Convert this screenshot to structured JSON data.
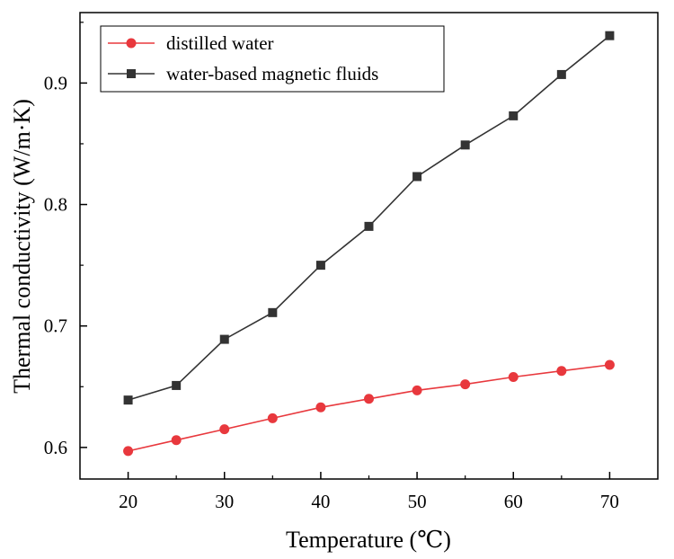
{
  "chart_data": {
    "type": "line",
    "title": "",
    "xlabel": "Temperature (℃)",
    "ylabel": "Thermal conductivity (W/m·K)",
    "x": [
      20,
      25,
      30,
      35,
      40,
      45,
      50,
      55,
      60,
      65,
      70
    ],
    "xlim": [
      15,
      75
    ],
    "ylim": [
      0.574,
      0.958
    ],
    "xticks": [
      20,
      30,
      40,
      50,
      60,
      70
    ],
    "yticks": [
      0.6,
      0.7,
      0.8,
      0.9
    ],
    "xtick_labels": [
      "20",
      "30",
      "40",
      "50",
      "60",
      "70"
    ],
    "ytick_labels": [
      "0.6",
      "0.7",
      "0.8",
      "0.9"
    ],
    "grid": false,
    "legend_position": "top-left",
    "series": [
      {
        "name": "distilled water",
        "color": "#e8383d",
        "marker": "circle",
        "values": [
          0.597,
          0.606,
          0.615,
          0.624,
          0.633,
          0.64,
          0.647,
          0.652,
          0.658,
          0.663,
          0.668
        ]
      },
      {
        "name": "water-based magnetic fluids",
        "color": "#333333",
        "marker": "square",
        "values": [
          0.639,
          0.651,
          0.689,
          0.711,
          0.75,
          0.782,
          0.823,
          0.849,
          0.873,
          0.907,
          0.939
        ]
      }
    ]
  }
}
